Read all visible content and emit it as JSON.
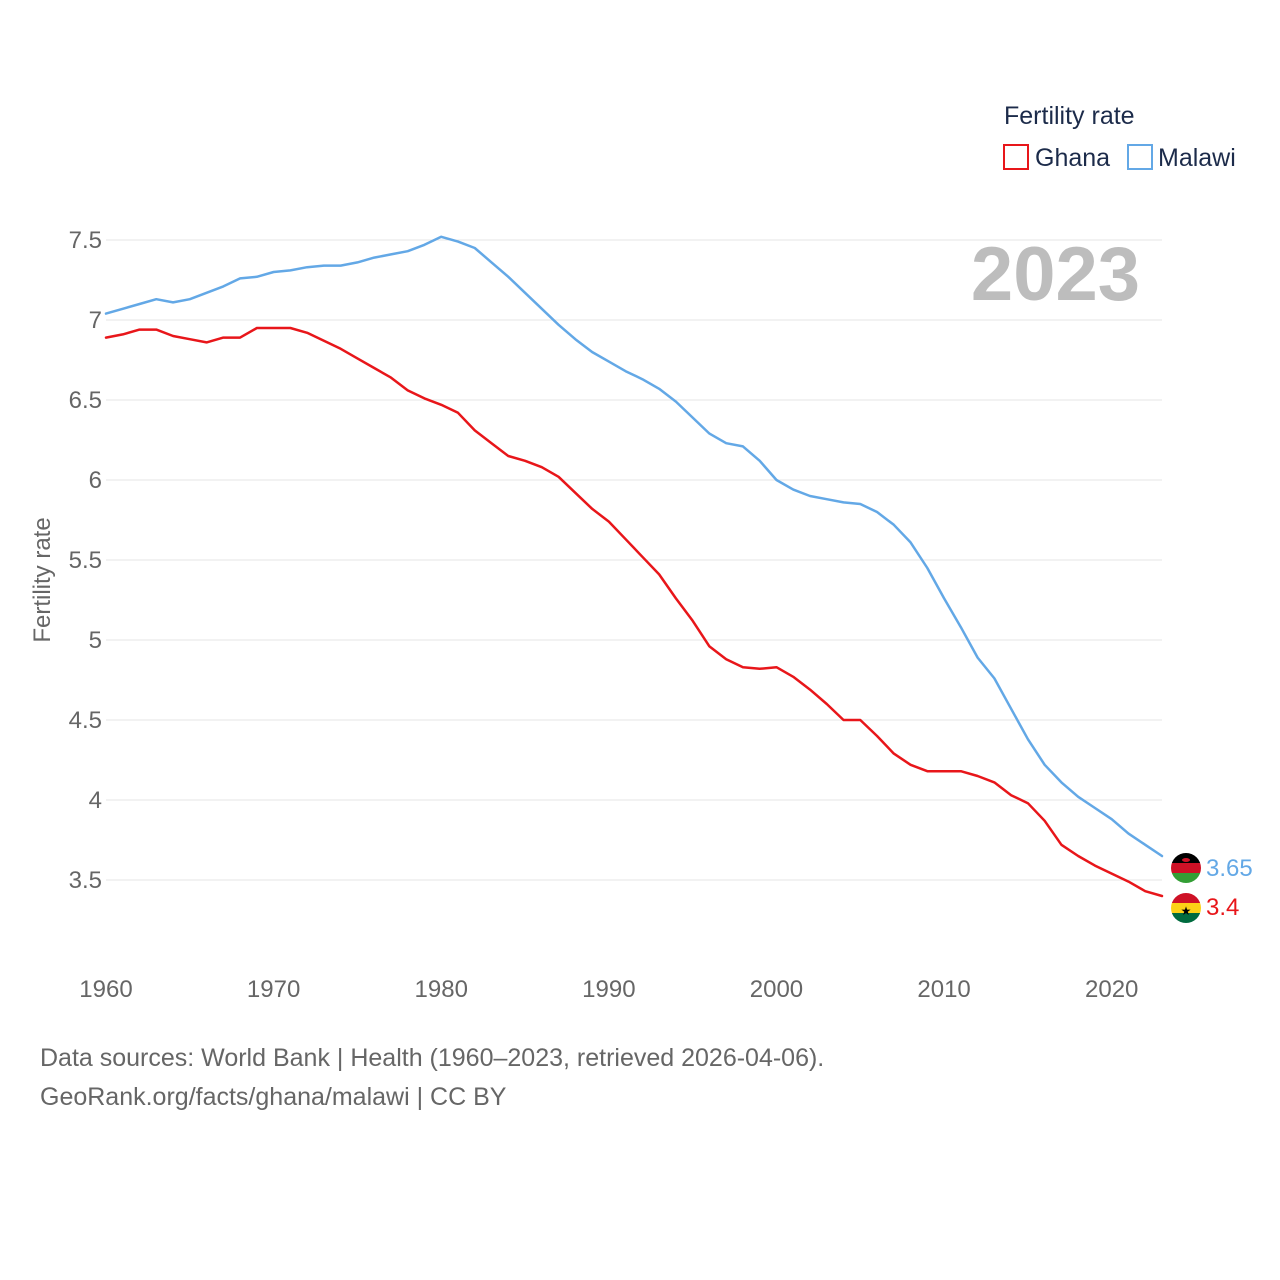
{
  "chart_data": {
    "type": "line",
    "title": "Fertility rate",
    "ylabel": "Fertility rate",
    "xlabel": "",
    "year_label": "2023",
    "xlim": [
      1960,
      2023
    ],
    "ylim": [
      3.0,
      7.75
    ],
    "x_ticks": [
      1960,
      1970,
      1980,
      1990,
      2000,
      2010,
      2020
    ],
    "y_ticks": [
      3.5,
      4,
      4.5,
      5,
      5.5,
      6,
      6.5,
      7,
      7.5
    ],
    "legend": {
      "title": "Fertility rate",
      "position": "top-right"
    },
    "x": [
      1960,
      1961,
      1962,
      1963,
      1964,
      1965,
      1966,
      1967,
      1968,
      1969,
      1970,
      1971,
      1972,
      1973,
      1974,
      1975,
      1976,
      1977,
      1978,
      1979,
      1980,
      1981,
      1982,
      1983,
      1984,
      1985,
      1986,
      1987,
      1988,
      1989,
      1990,
      1991,
      1992,
      1993,
      1994,
      1995,
      1996,
      1997,
      1998,
      1999,
      2000,
      2001,
      2002,
      2003,
      2004,
      2005,
      2006,
      2007,
      2008,
      2009,
      2010,
      2011,
      2012,
      2013,
      2014,
      2015,
      2016,
      2017,
      2018,
      2019,
      2020,
      2021,
      2022,
      2023
    ],
    "series": [
      {
        "name": "Ghana",
        "color": "#e8161a",
        "end_label": "3.4",
        "values": [
          6.89,
          6.91,
          6.94,
          6.94,
          6.9,
          6.88,
          6.86,
          6.89,
          6.89,
          6.95,
          6.95,
          6.95,
          6.92,
          6.87,
          6.82,
          6.76,
          6.7,
          6.64,
          6.56,
          6.51,
          6.47,
          6.42,
          6.31,
          6.23,
          6.15,
          6.12,
          6.08,
          6.02,
          5.92,
          5.82,
          5.74,
          5.63,
          5.52,
          5.41,
          5.26,
          5.12,
          4.96,
          4.88,
          4.83,
          4.82,
          4.83,
          4.77,
          4.69,
          4.6,
          4.5,
          4.5,
          4.4,
          4.29,
          4.22,
          4.18,
          4.18,
          4.18,
          4.15,
          4.11,
          4.03,
          3.98,
          3.87,
          3.72,
          3.65,
          3.59,
          3.54,
          3.49,
          3.43,
          3.4
        ]
      },
      {
        "name": "Malawi",
        "color": "#63a8e6",
        "end_label": "3.65",
        "values": [
          7.04,
          7.07,
          7.1,
          7.13,
          7.11,
          7.13,
          7.17,
          7.21,
          7.26,
          7.27,
          7.3,
          7.31,
          7.33,
          7.34,
          7.34,
          7.36,
          7.39,
          7.41,
          7.43,
          7.47,
          7.52,
          7.49,
          7.45,
          7.36,
          7.27,
          7.17,
          7.07,
          6.97,
          6.88,
          6.8,
          6.74,
          6.68,
          6.63,
          6.57,
          6.49,
          6.39,
          6.29,
          6.23,
          6.21,
          6.12,
          6.0,
          5.94,
          5.9,
          5.88,
          5.86,
          5.85,
          5.8,
          5.72,
          5.61,
          5.45,
          5.26,
          5.08,
          4.89,
          4.76,
          4.57,
          4.38,
          4.22,
          4.11,
          4.02,
          3.95,
          3.88,
          3.79,
          3.72,
          3.65
        ]
      }
    ]
  },
  "footer": {
    "line1": "Data sources: World Bank | Health (1960–2023, retrieved 2026-04-06).",
    "line2": "GeoRank.org/facts/ghana/malawi | CC BY"
  }
}
